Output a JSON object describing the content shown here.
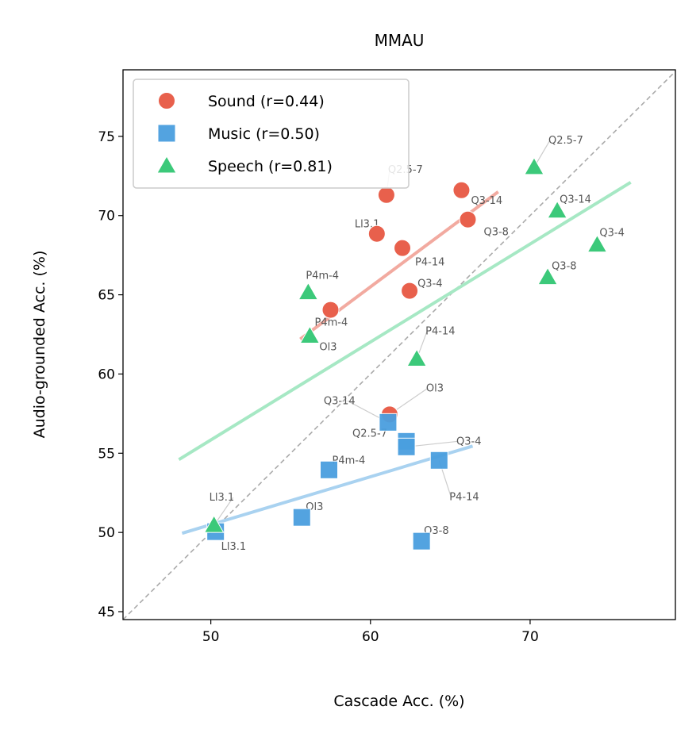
{
  "chart_data": {
    "type": "scatter",
    "title": "MMAU",
    "xlabel": "Cascade Acc. (%)",
    "ylabel": "Audio-grounded Acc. (%)",
    "xlim": [
      44.5,
      79.1
    ],
    "ylim": [
      44.5,
      79.2
    ],
    "xticks": [
      50,
      60,
      70
    ],
    "yticks": [
      45,
      50,
      55,
      60,
      65,
      70,
      75
    ],
    "grid": false,
    "legend_position": "top-left",
    "diagonal": "y=x dashed gray",
    "series": [
      {
        "name": "Sound (r=0.44)",
        "marker": "circle",
        "color": "#e8604c",
        "fit_color": "#f2aaa0",
        "fit": [
          [
            55.6,
            62.2
          ],
          [
            68.0,
            71.5
          ]
        ],
        "points": [
          {
            "label": "Q2.5-7",
            "x": 61.0,
            "y": 71.3
          },
          {
            "label": "Q3-14",
            "x": 65.7,
            "y": 71.6
          },
          {
            "label": "Q3-8",
            "x": 66.1,
            "y": 69.75
          },
          {
            "label": "Ll3.1",
            "x": 60.4,
            "y": 68.85
          },
          {
            "label": "P4-14",
            "x": 62.0,
            "y": 67.95
          },
          {
            "label": "Q3-4",
            "x": 62.45,
            "y": 65.25
          },
          {
            "label": "P4m-4",
            "x": 57.5,
            "y": 64.05
          },
          {
            "label": "Ol3",
            "x": 61.2,
            "y": 57.45
          }
        ]
      },
      {
        "name": "Music (r=0.50)",
        "marker": "square",
        "color": "#4a9fdf",
        "fit_color": "#a9d2f0",
        "fit": [
          [
            48.2,
            49.95
          ],
          [
            66.4,
            55.45
          ]
        ],
        "points": [
          {
            "label": "Q3-14",
            "x": 61.1,
            "y": 56.95
          },
          {
            "label": "Q2.5-7",
            "x": 62.25,
            "y": 55.75
          },
          {
            "label": "Q3-4",
            "x": 62.25,
            "y": 55.4
          },
          {
            "label": "P4-14",
            "x": 64.3,
            "y": 54.55
          },
          {
            "label": "P4m-4",
            "x": 57.4,
            "y": 53.95
          },
          {
            "label": "Ol3",
            "x": 55.7,
            "y": 50.95
          },
          {
            "label": "Q3-8",
            "x": 63.2,
            "y": 49.45
          },
          {
            "label": "Ll3.1",
            "x": 50.3,
            "y": 50.05
          }
        ]
      },
      {
        "name": "Speech (r=0.81)",
        "marker": "triangle",
        "color": "#3cc97a",
        "fit_color": "#a6e8c4",
        "fit": [
          [
            48.0,
            54.6
          ],
          [
            76.3,
            72.1
          ]
        ],
        "points": [
          {
            "label": "Q2.5-7",
            "x": 70.25,
            "y": 73.05
          },
          {
            "label": "Q3-14",
            "x": 71.7,
            "y": 70.3
          },
          {
            "label": "Q3-4",
            "x": 74.2,
            "y": 68.15
          },
          {
            "label": "Q3-8",
            "x": 71.1,
            "y": 66.1
          },
          {
            "label": "P4m-4",
            "x": 56.1,
            "y": 65.15
          },
          {
            "label": "Ol3",
            "x": 56.2,
            "y": 62.4
          },
          {
            "label": "P4-14",
            "x": 62.9,
            "y": 60.95
          },
          {
            "label": "Ll3.1",
            "x": 50.2,
            "y": 50.45
          }
        ]
      }
    ]
  }
}
